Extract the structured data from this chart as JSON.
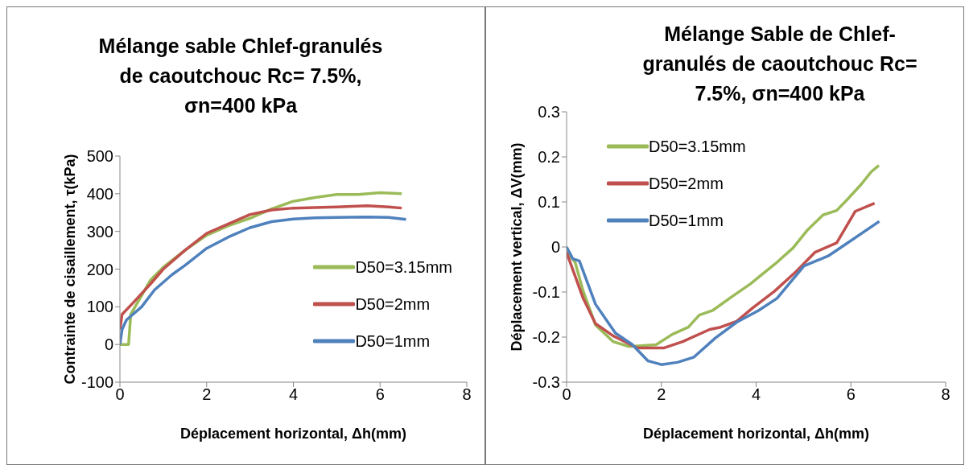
{
  "chart_data": [
    {
      "type": "line",
      "title": "Mélange sable Chlef-granulés de caoutchouc Rc= 7.5%, σn=400 kPa",
      "xlabel": "Déplacement horizontal, Δh(mm)",
      "ylabel": "Contrainte de cisaillement, τ(kPa)",
      "xlim": [
        0,
        8
      ],
      "xticks": [
        0,
        2,
        4,
        6,
        8
      ],
      "ylim": [
        -100,
        500
      ],
      "yticks": [
        -100,
        0,
        100,
        200,
        300,
        400,
        500
      ],
      "legend": "right",
      "marker": "none",
      "line_style": "solid",
      "series": [
        {
          "name": "D50=3.15mm",
          "color": "#9bbb59",
          "x": [
            0,
            0.2,
            0.25,
            0.5,
            0.7,
            1,
            1.5,
            2,
            2.5,
            3,
            3.5,
            4,
            4.5,
            5,
            5.5,
            6,
            6.5
          ],
          "values": [
            0,
            0,
            80,
            130,
            170,
            205,
            250,
            290,
            315,
            335,
            360,
            380,
            390,
            398,
            398,
            403,
            400
          ]
        },
        {
          "name": "D50=2mm",
          "color": "#c0504d",
          "x": [
            0,
            0.05,
            0.3,
            0.7,
            1,
            1.5,
            2,
            2.5,
            3,
            3.5,
            4,
            5,
            5.7,
            6.2,
            6.5
          ],
          "values": [
            40,
            80,
            110,
            160,
            200,
            250,
            295,
            320,
            345,
            357,
            362,
            365,
            368,
            365,
            362
          ]
        },
        {
          "name": "D50=1mm",
          "color": "#4f81bd",
          "x": [
            0,
            0.05,
            0.15,
            0.5,
            0.8,
            1.2,
            1.5,
            2,
            2.5,
            3,
            3.5,
            4,
            4.5,
            5,
            5.7,
            6.2,
            6.6
          ],
          "values": [
            0,
            40,
            65,
            100,
            145,
            185,
            210,
            255,
            285,
            310,
            326,
            333,
            336,
            337,
            338,
            337,
            332
          ]
        }
      ]
    },
    {
      "type": "line",
      "title": "Mélange Sable de Chlef-granulés de caoutchouc Rc= 7.5%, σn=400 kPa",
      "xlabel": "Déplacement horizontal, Δh(mm)",
      "ylabel": "Déplacement vertical, ΔV(mm)",
      "xlim": [
        0,
        8
      ],
      "xticks": [
        0,
        2,
        4,
        6,
        8
      ],
      "ylim": [
        -0.3,
        0.3
      ],
      "yticks": [
        -0.3,
        -0.2,
        -0.1,
        0,
        0.1,
        0.2,
        0.3
      ],
      "legend": "top left",
      "marker": "none",
      "line_style": "solid",
      "series": [
        {
          "name": "D50=3.15mm",
          "color": "#9bbb59",
          "x": [
            0,
            0.18,
            0.35,
            0.61,
            0.98,
            1.32,
            1.89,
            2.23,
            2.57,
            2.8,
            3.08,
            3.48,
            3.88,
            4.16,
            4.44,
            4.78,
            5.07,
            5.41,
            5.7,
            5.92,
            6.2,
            6.43,
            6.59
          ],
          "values": [
            -0.01,
            -0.034,
            -0.098,
            -0.173,
            -0.21,
            -0.221,
            -0.217,
            -0.194,
            -0.178,
            -0.151,
            -0.141,
            -0.111,
            -0.082,
            -0.058,
            -0.034,
            -0.002,
            0.036,
            0.071,
            0.081,
            0.105,
            0.137,
            0.167,
            0.181
          ]
        },
        {
          "name": "D50=2mm",
          "color": "#c0504d",
          "x": [
            0,
            0.35,
            0.61,
            0.98,
            1.49,
            2.06,
            2.45,
            3.02,
            3.25,
            3.59,
            3.93,
            4.39,
            4.84,
            5.24,
            5.7,
            6.09,
            6.5
          ],
          "values": [
            -0.012,
            -0.114,
            -0.17,
            -0.197,
            -0.224,
            -0.224,
            -0.21,
            -0.183,
            -0.178,
            -0.165,
            -0.135,
            -0.098,
            -0.055,
            -0.012,
            0.009,
            0.079,
            0.097
          ]
        },
        {
          "name": "D50=1mm",
          "color": "#4f81bd",
          "x": [
            0,
            0.13,
            0.27,
            0.61,
            1.03,
            1.38,
            1.72,
            2.0,
            2.34,
            2.68,
            3.14,
            3.59,
            4.05,
            4.44,
            4.78,
            5.01,
            5.52,
            5.86,
            6.6
          ],
          "values": [
            0,
            -0.026,
            -0.031,
            -0.127,
            -0.191,
            -0.216,
            -0.253,
            -0.261,
            -0.256,
            -0.245,
            -0.202,
            -0.167,
            -0.141,
            -0.114,
            -0.071,
            -0.042,
            -0.02,
            0.004,
            0.057
          ]
        }
      ]
    }
  ]
}
